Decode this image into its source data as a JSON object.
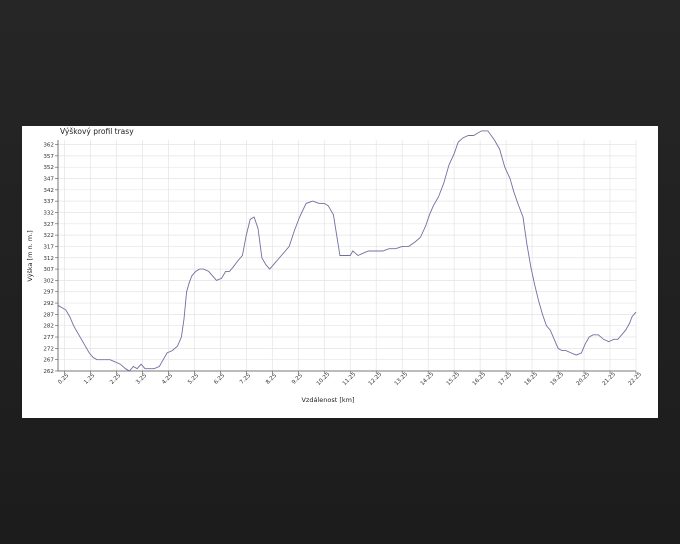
{
  "chart_data": {
    "type": "line",
    "title": "Výškový profil trasy",
    "xlabel": "Vzdálenost [km]",
    "ylabel": "Výška [m n. m.]",
    "xlim": [
      0,
      22.25
    ],
    "ylim": [
      262,
      364
    ],
    "x_ticks": [
      "0.25",
      "1.25",
      "2.25",
      "3.25",
      "4.25",
      "5.25",
      "6.25",
      "7.25",
      "8.25",
      "9.25",
      "10.25",
      "11.25",
      "12.25",
      "13.25",
      "14.25",
      "15.25",
      "16.25",
      "17.25",
      "18.25",
      "19.25",
      "20.25",
      "21.25",
      "22.25"
    ],
    "y_ticks": [
      262,
      267,
      272,
      277,
      282,
      287,
      292,
      297,
      302,
      307,
      312,
      317,
      322,
      327,
      332,
      337,
      342,
      347,
      352,
      357,
      362
    ],
    "grid": true,
    "line_color": "#7070a0",
    "series": [
      {
        "x": [
          0,
          0.15,
          0.3,
          0.45,
          0.6,
          0.8,
          1.0,
          1.2,
          1.35,
          1.5,
          1.7,
          2.0,
          2.2,
          2.4,
          2.6,
          2.75,
          2.9,
          3.05,
          3.2,
          3.35,
          3.5,
          3.7,
          3.9,
          4.05,
          4.2,
          4.4,
          4.6,
          4.75,
          4.85,
          4.95,
          5.05,
          5.15,
          5.3,
          5.45,
          5.6,
          5.8,
          5.95,
          6.1,
          6.3,
          6.45,
          6.6,
          6.75,
          6.95,
          7.1,
          7.25,
          7.4,
          7.55,
          7.7,
          7.85,
          8.0,
          8.15,
          8.3,
          8.45,
          8.6,
          8.75,
          8.9,
          9.1,
          9.3,
          9.55,
          9.8,
          10.05,
          10.25,
          10.4,
          10.6,
          10.85,
          11.1,
          11.25,
          11.35,
          11.45,
          11.55,
          11.75,
          11.95,
          12.15,
          12.3,
          12.5,
          12.75,
          13.0,
          13.25,
          13.5,
          13.75,
          13.95,
          14.15,
          14.3,
          14.45,
          14.65,
          14.85,
          15.05,
          15.25,
          15.4,
          15.6,
          15.8,
          16.0,
          16.3,
          16.55,
          16.8,
          17.0,
          17.2,
          17.4,
          17.55,
          17.7,
          17.9,
          18.05,
          18.2,
          18.35,
          18.5,
          18.65,
          18.8,
          18.95,
          19.1,
          19.25,
          19.4,
          19.55,
          19.75,
          19.95,
          20.15,
          20.3,
          20.45,
          20.6,
          20.8,
          21.0,
          21.2,
          21.4,
          21.55,
          21.7,
          21.85,
          22.0,
          22.1,
          22.25
        ],
        "values": [
          291,
          290,
          289,
          286,
          282,
          278,
          274,
          270,
          268,
          267,
          267,
          267,
          266,
          265,
          263,
          262,
          264,
          263,
          265,
          263,
          263,
          263,
          264,
          267,
          270,
          271,
          273,
          277,
          285,
          297,
          301,
          304,
          306,
          307,
          307,
          306,
          304,
          302,
          303,
          306,
          306,
          308,
          311,
          313,
          322,
          329,
          330,
          325,
          312,
          309,
          307,
          309,
          311,
          313,
          315,
          317,
          324,
          330,
          336,
          337,
          336,
          336,
          335,
          331,
          313,
          313,
          313,
          315,
          314,
          313,
          314,
          315,
          315,
          315,
          315,
          316,
          316,
          317,
          317,
          319,
          321,
          326,
          331,
          335,
          339,
          345,
          353,
          358,
          363,
          365,
          366,
          366,
          368,
          368,
          364,
          360,
          352,
          347,
          341,
          336,
          330,
          318,
          308,
          300,
          293,
          287,
          282,
          280,
          276,
          272,
          271,
          271,
          270,
          269,
          270,
          274,
          277,
          278,
          278,
          276,
          275,
          276,
          276,
          278,
          280,
          283,
          286,
          288
        ]
      }
    ]
  }
}
